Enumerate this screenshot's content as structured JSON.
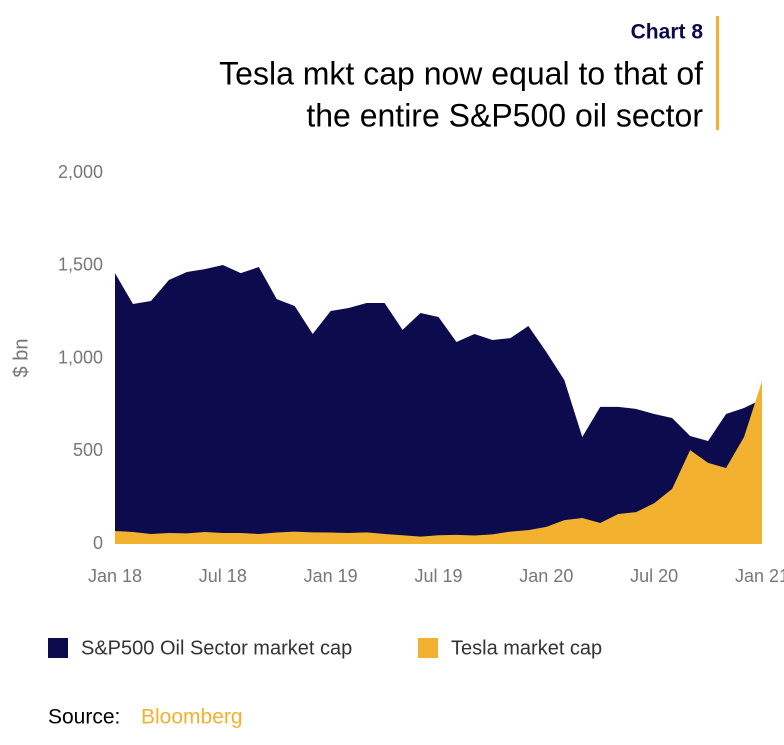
{
  "chart_data": {
    "type": "area",
    "kicker": "Chart 8",
    "title": [
      "Tesla mkt cap now equal to that of",
      "the entire S&P500 oil sector"
    ],
    "y_label": "$ bn",
    "categories": [
      "Jan 18",
      null,
      null,
      null,
      null,
      null,
      "Jul 18",
      null,
      null,
      null,
      null,
      null,
      "Jan 19",
      null,
      null,
      null,
      null,
      null,
      "Jul 19",
      null,
      null,
      null,
      null,
      null,
      "Jan 20",
      null,
      null,
      null,
      null,
      null,
      "Jul 20",
      null,
      null,
      null,
      null,
      null,
      "Jan 21"
    ],
    "series": [
      {
        "name": "S&P500 Oil Sector market cap",
        "color": "#0b0b4d",
        "values": [
          1460,
          1294,
          1310,
          1423,
          1466,
          1482,
          1504,
          1460,
          1493,
          1320,
          1283,
          1132,
          1256,
          1272,
          1299,
          1299,
          1154,
          1245,
          1224,
          1089,
          1132,
          1100,
          1110,
          1175,
          1035,
          884,
          577,
          739,
          739,
          728,
          701,
          679,
          582,
          555,
          701,
          733,
          780
        ]
      },
      {
        "name": "Tesla market cap",
        "color": "#f2b22f",
        "values": [
          70,
          65,
          54,
          59,
          57,
          65,
          59,
          59,
          54,
          62,
          67,
          63,
          62,
          59,
          63,
          54,
          47,
          40,
          47,
          49,
          46,
          52,
          67,
          75,
          92,
          129,
          140,
          113,
          162,
          172,
          220,
          297,
          506,
          437,
          410,
          577,
          878
        ]
      }
    ],
    "ylim": [
      0,
      2000
    ],
    "yticks": [
      0,
      500,
      {
        "value": 1000,
        "label": "1,000"
      },
      {
        "value": 1500,
        "label": "1,500"
      },
      {
        "value": 2000,
        "label": "2,000"
      }
    ],
    "grid": false,
    "source_label": "Source:",
    "source": "Bloomberg"
  }
}
